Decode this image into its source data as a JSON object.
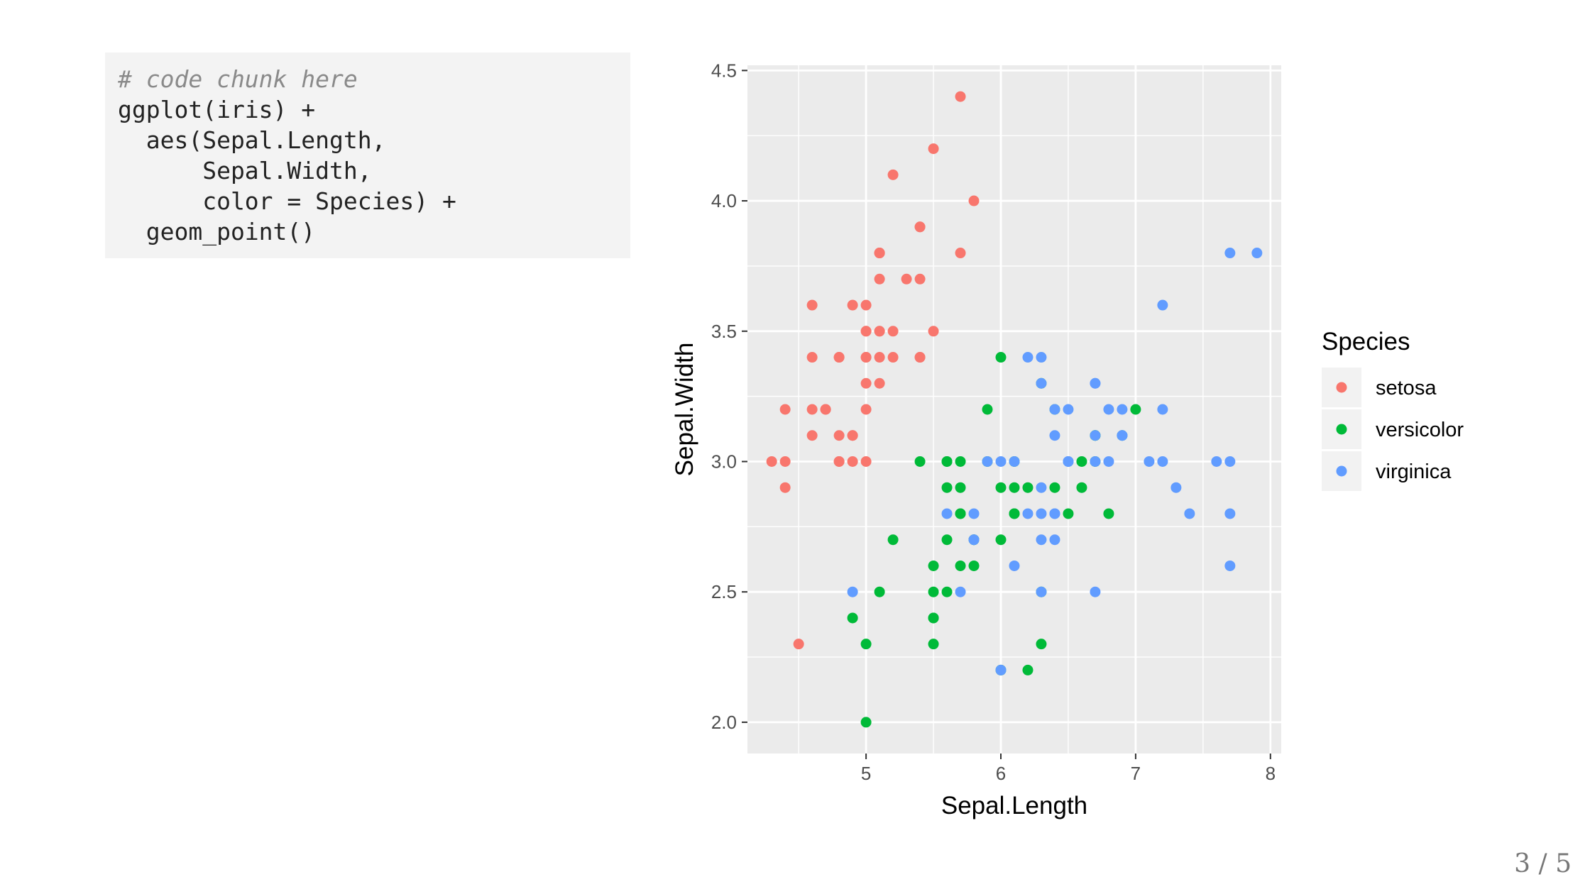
{
  "code": {
    "comment": "# code chunk here",
    "lines": [
      "ggplot(iris) +",
      "  aes(Sepal.Length,",
      "      Sepal.Width,",
      "      color = Species) +",
      "  geom_point()"
    ]
  },
  "page_indicator": "3 / 5",
  "chart_data": {
    "type": "scatter",
    "xlabel": "Sepal.Length",
    "ylabel": "Sepal.Width",
    "xlim": [
      4.12,
      8.08
    ],
    "ylim": [
      1.88,
      4.52
    ],
    "x_ticks": [
      5,
      6,
      7,
      8
    ],
    "x_tick_labels": [
      "5",
      "6",
      "7",
      "8"
    ],
    "y_ticks": [
      2.0,
      2.5,
      3.0,
      3.5,
      4.0,
      4.5
    ],
    "y_tick_labels": [
      "2.0",
      "2.5",
      "3.0",
      "3.5",
      "4.0",
      "4.5"
    ],
    "grid": true,
    "panel_background": "#ebebeb",
    "legend": {
      "title": "Species",
      "position": "right"
    },
    "series": [
      {
        "name": "setosa",
        "color": "#f8766d",
        "points": [
          [
            5.1,
            3.5
          ],
          [
            4.9,
            3.0
          ],
          [
            4.7,
            3.2
          ],
          [
            4.6,
            3.1
          ],
          [
            5.0,
            3.6
          ],
          [
            5.4,
            3.9
          ],
          [
            4.6,
            3.4
          ],
          [
            5.0,
            3.4
          ],
          [
            4.4,
            2.9
          ],
          [
            4.9,
            3.1
          ],
          [
            5.4,
            3.7
          ],
          [
            4.8,
            3.4
          ],
          [
            4.8,
            3.0
          ],
          [
            4.3,
            3.0
          ],
          [
            5.8,
            4.0
          ],
          [
            5.7,
            4.4
          ],
          [
            5.4,
            3.9
          ],
          [
            5.1,
            3.5
          ],
          [
            5.7,
            3.8
          ],
          [
            5.1,
            3.8
          ],
          [
            5.4,
            3.4
          ],
          [
            5.1,
            3.7
          ],
          [
            4.6,
            3.6
          ],
          [
            5.1,
            3.3
          ],
          [
            4.8,
            3.4
          ],
          [
            5.0,
            3.0
          ],
          [
            5.0,
            3.4
          ],
          [
            5.2,
            3.5
          ],
          [
            5.2,
            3.4
          ],
          [
            4.7,
            3.2
          ],
          [
            4.8,
            3.1
          ],
          [
            5.4,
            3.4
          ],
          [
            5.2,
            4.1
          ],
          [
            5.5,
            4.2
          ],
          [
            4.9,
            3.1
          ],
          [
            5.0,
            3.2
          ],
          [
            5.5,
            3.5
          ],
          [
            4.9,
            3.6
          ],
          [
            4.4,
            3.0
          ],
          [
            5.1,
            3.4
          ],
          [
            5.0,
            3.5
          ],
          [
            4.5,
            2.3
          ],
          [
            4.4,
            3.2
          ],
          [
            5.0,
            3.5
          ],
          [
            5.1,
            3.8
          ],
          [
            4.8,
            3.0
          ],
          [
            5.1,
            3.8
          ],
          [
            4.6,
            3.2
          ],
          [
            5.3,
            3.7
          ],
          [
            5.0,
            3.3
          ]
        ]
      },
      {
        "name": "versicolor",
        "color": "#00ba38",
        "points": [
          [
            7.0,
            3.2
          ],
          [
            6.4,
            3.2
          ],
          [
            6.9,
            3.1
          ],
          [
            5.5,
            2.3
          ],
          [
            6.5,
            2.8
          ],
          [
            5.7,
            2.8
          ],
          [
            6.3,
            3.3
          ],
          [
            4.9,
            2.4
          ],
          [
            6.6,
            2.9
          ],
          [
            5.2,
            2.7
          ],
          [
            5.0,
            2.0
          ],
          [
            5.9,
            3.0
          ],
          [
            6.0,
            2.2
          ],
          [
            6.1,
            2.9
          ],
          [
            5.6,
            2.9
          ],
          [
            6.7,
            3.1
          ],
          [
            5.6,
            3.0
          ],
          [
            5.8,
            2.7
          ],
          [
            6.2,
            2.2
          ],
          [
            5.6,
            2.5
          ],
          [
            5.9,
            3.2
          ],
          [
            6.1,
            2.8
          ],
          [
            6.3,
            2.5
          ],
          [
            6.1,
            2.8
          ],
          [
            6.4,
            2.9
          ],
          [
            6.6,
            3.0
          ],
          [
            6.8,
            2.8
          ],
          [
            6.7,
            3.0
          ],
          [
            6.0,
            2.9
          ],
          [
            5.7,
            2.6
          ],
          [
            5.5,
            2.4
          ],
          [
            5.5,
            2.4
          ],
          [
            5.8,
            2.7
          ],
          [
            6.0,
            2.7
          ],
          [
            5.4,
            3.0
          ],
          [
            6.0,
            3.4
          ],
          [
            6.7,
            3.1
          ],
          [
            6.3,
            2.3
          ],
          [
            5.6,
            3.0
          ],
          [
            5.5,
            2.5
          ],
          [
            5.5,
            2.6
          ],
          [
            6.1,
            3.0
          ],
          [
            5.8,
            2.6
          ],
          [
            5.0,
            2.3
          ],
          [
            5.6,
            2.7
          ],
          [
            5.7,
            3.0
          ],
          [
            5.7,
            2.9
          ],
          [
            6.2,
            2.9
          ],
          [
            5.1,
            2.5
          ],
          [
            5.7,
            2.8
          ]
        ]
      },
      {
        "name": "virginica",
        "color": "#619cff",
        "points": [
          [
            6.3,
            3.3
          ],
          [
            5.8,
            2.7
          ],
          [
            7.1,
            3.0
          ],
          [
            6.3,
            2.9
          ],
          [
            6.5,
            3.0
          ],
          [
            7.6,
            3.0
          ],
          [
            4.9,
            2.5
          ],
          [
            7.3,
            2.9
          ],
          [
            6.7,
            2.5
          ],
          [
            7.2,
            3.6
          ],
          [
            6.5,
            3.2
          ],
          [
            6.4,
            2.7
          ],
          [
            6.8,
            3.0
          ],
          [
            5.7,
            2.5
          ],
          [
            5.8,
            2.8
          ],
          [
            6.4,
            3.2
          ],
          [
            6.5,
            3.0
          ],
          [
            7.7,
            3.8
          ],
          [
            7.7,
            2.6
          ],
          [
            6.0,
            2.2
          ],
          [
            6.9,
            3.2
          ],
          [
            5.6,
            2.8
          ],
          [
            7.7,
            2.8
          ],
          [
            6.3,
            2.7
          ],
          [
            6.7,
            3.3
          ],
          [
            7.2,
            3.2
          ],
          [
            6.2,
            2.8
          ],
          [
            6.1,
            3.0
          ],
          [
            6.4,
            2.8
          ],
          [
            7.2,
            3.0
          ],
          [
            7.4,
            2.8
          ],
          [
            7.9,
            3.8
          ],
          [
            6.4,
            2.8
          ],
          [
            6.3,
            2.8
          ],
          [
            6.1,
            2.6
          ],
          [
            7.7,
            3.0
          ],
          [
            6.3,
            3.4
          ],
          [
            6.4,
            3.1
          ],
          [
            6.0,
            3.0
          ],
          [
            6.9,
            3.1
          ],
          [
            6.7,
            3.1
          ],
          [
            6.9,
            3.1
          ],
          [
            5.8,
            2.7
          ],
          [
            6.8,
            3.2
          ],
          [
            6.7,
            3.3
          ],
          [
            6.7,
            3.0
          ],
          [
            6.3,
            2.5
          ],
          [
            6.5,
            3.0
          ],
          [
            6.2,
            3.4
          ],
          [
            5.9,
            3.0
          ]
        ]
      }
    ]
  }
}
